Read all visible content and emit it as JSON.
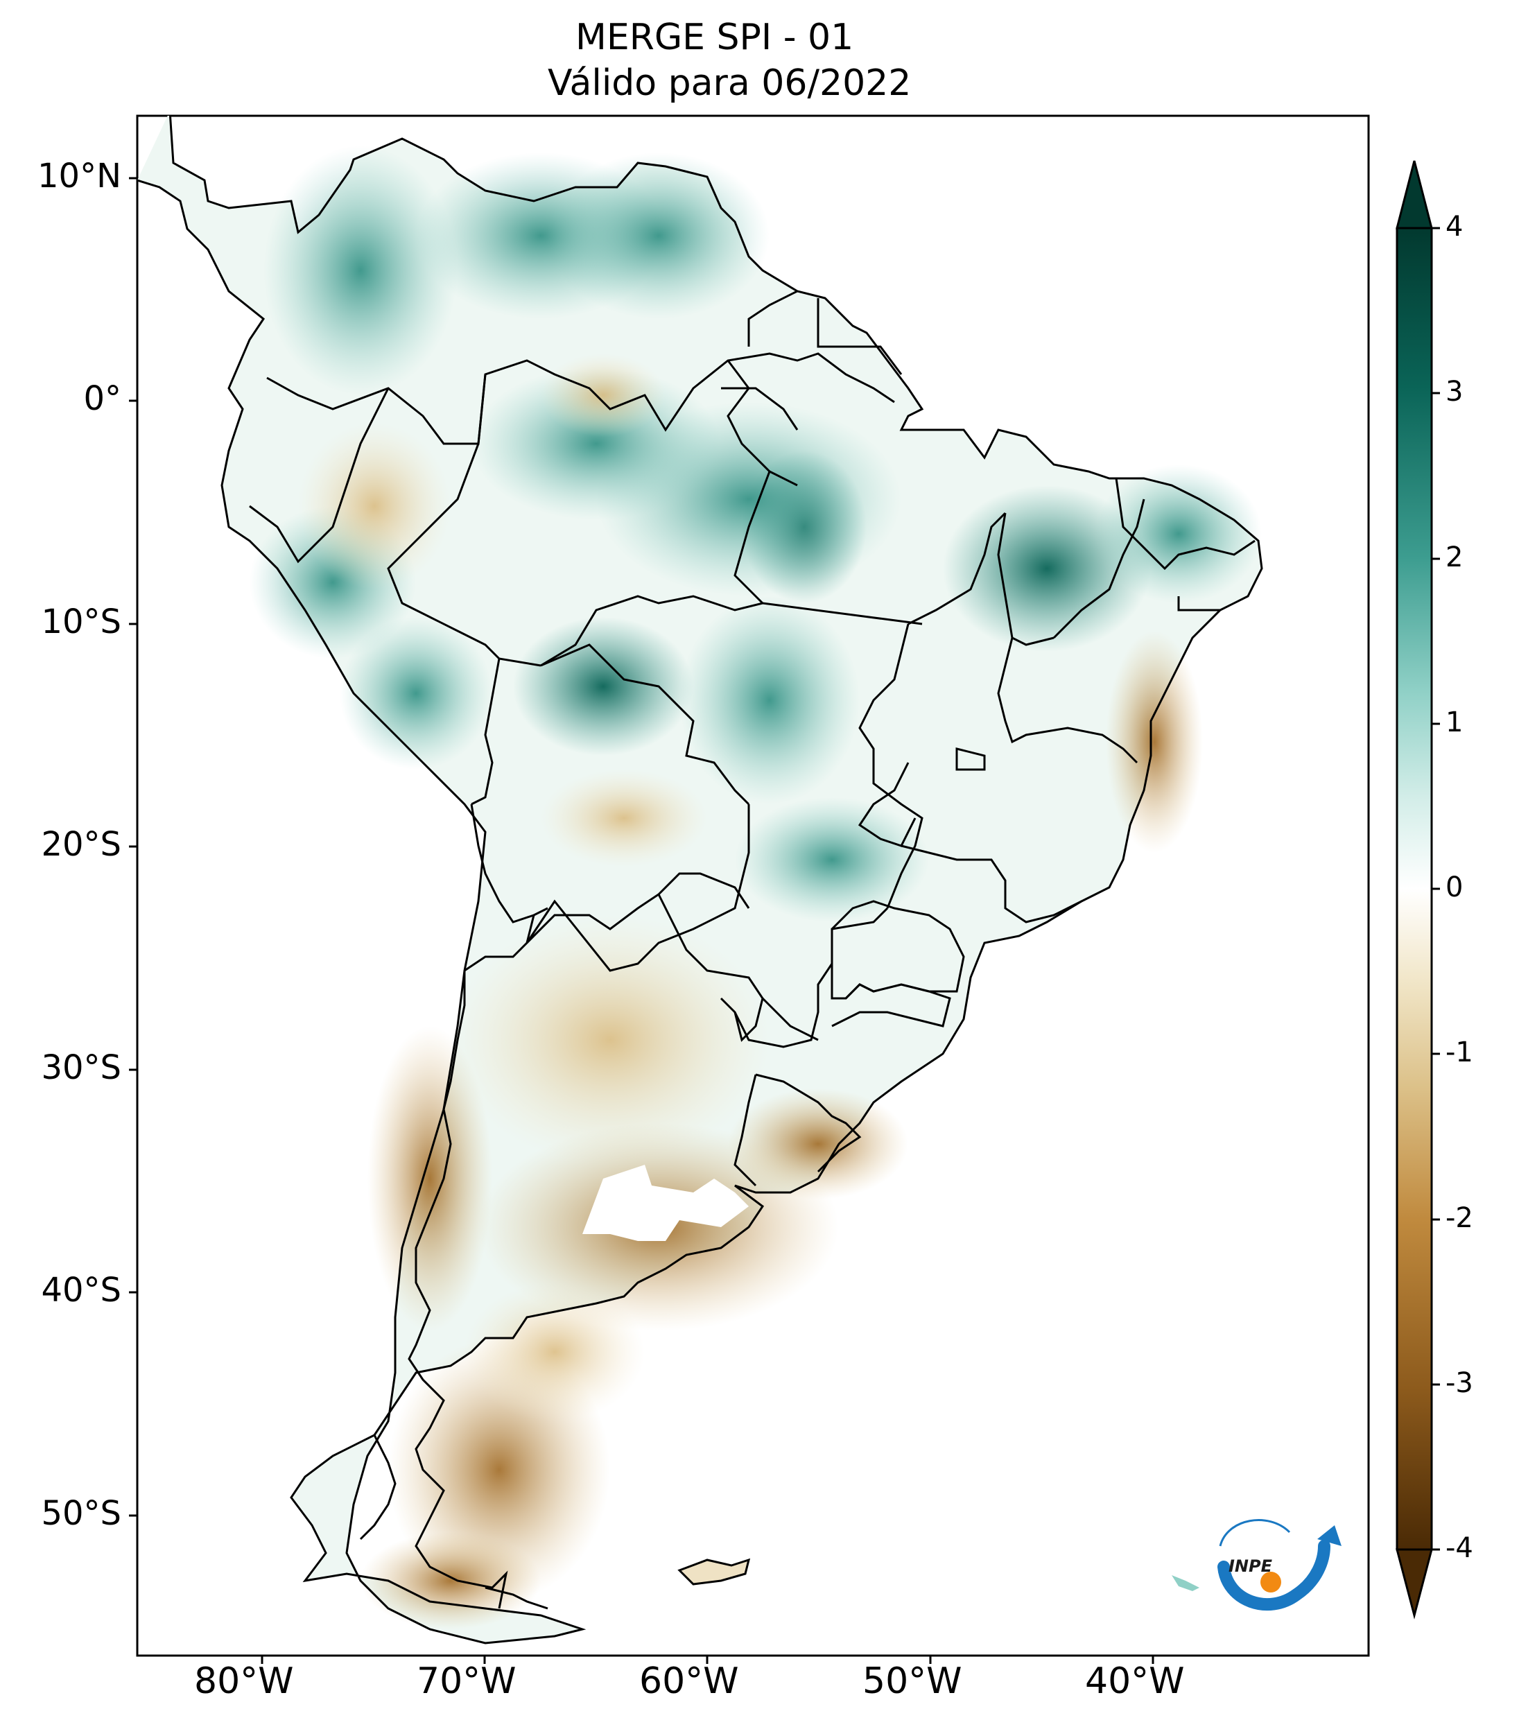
{
  "title": {
    "line1": "MERGE   SPI - 01",
    "line2": "Válido para 06/2022"
  },
  "axes": {
    "lat_ticks": [
      "10°N",
      "0°",
      "10°S",
      "20°S",
      "30°S",
      "40°S",
      "50°S"
    ],
    "lon_ticks": [
      "80°W",
      "70°W",
      "60°W",
      "50°W",
      "40°W"
    ],
    "lon_range": [
      -85,
      -30
    ],
    "lat_range": [
      -56,
      13
    ]
  },
  "colorbar": {
    "labels": [
      "4",
      "3",
      "2",
      "1",
      "0",
      "-1",
      "-2",
      "-3",
      "-4"
    ],
    "min": -4,
    "max": 4,
    "colors": [
      "#4a2a05",
      "#8c5a1c",
      "#c08a3e",
      "#dcc189",
      "#f1e6c8",
      "#ffffff",
      "#d2ede8",
      "#8fd0c6",
      "#3d9d90",
      "#0a6457",
      "#02392f"
    ]
  },
  "logo": {
    "text": "INPE",
    "blue": "#1a78c2",
    "orange": "#f28a12"
  },
  "colors": {
    "border": "#000000",
    "dry": "#b27a2c",
    "wet": "#4ab0a2"
  }
}
